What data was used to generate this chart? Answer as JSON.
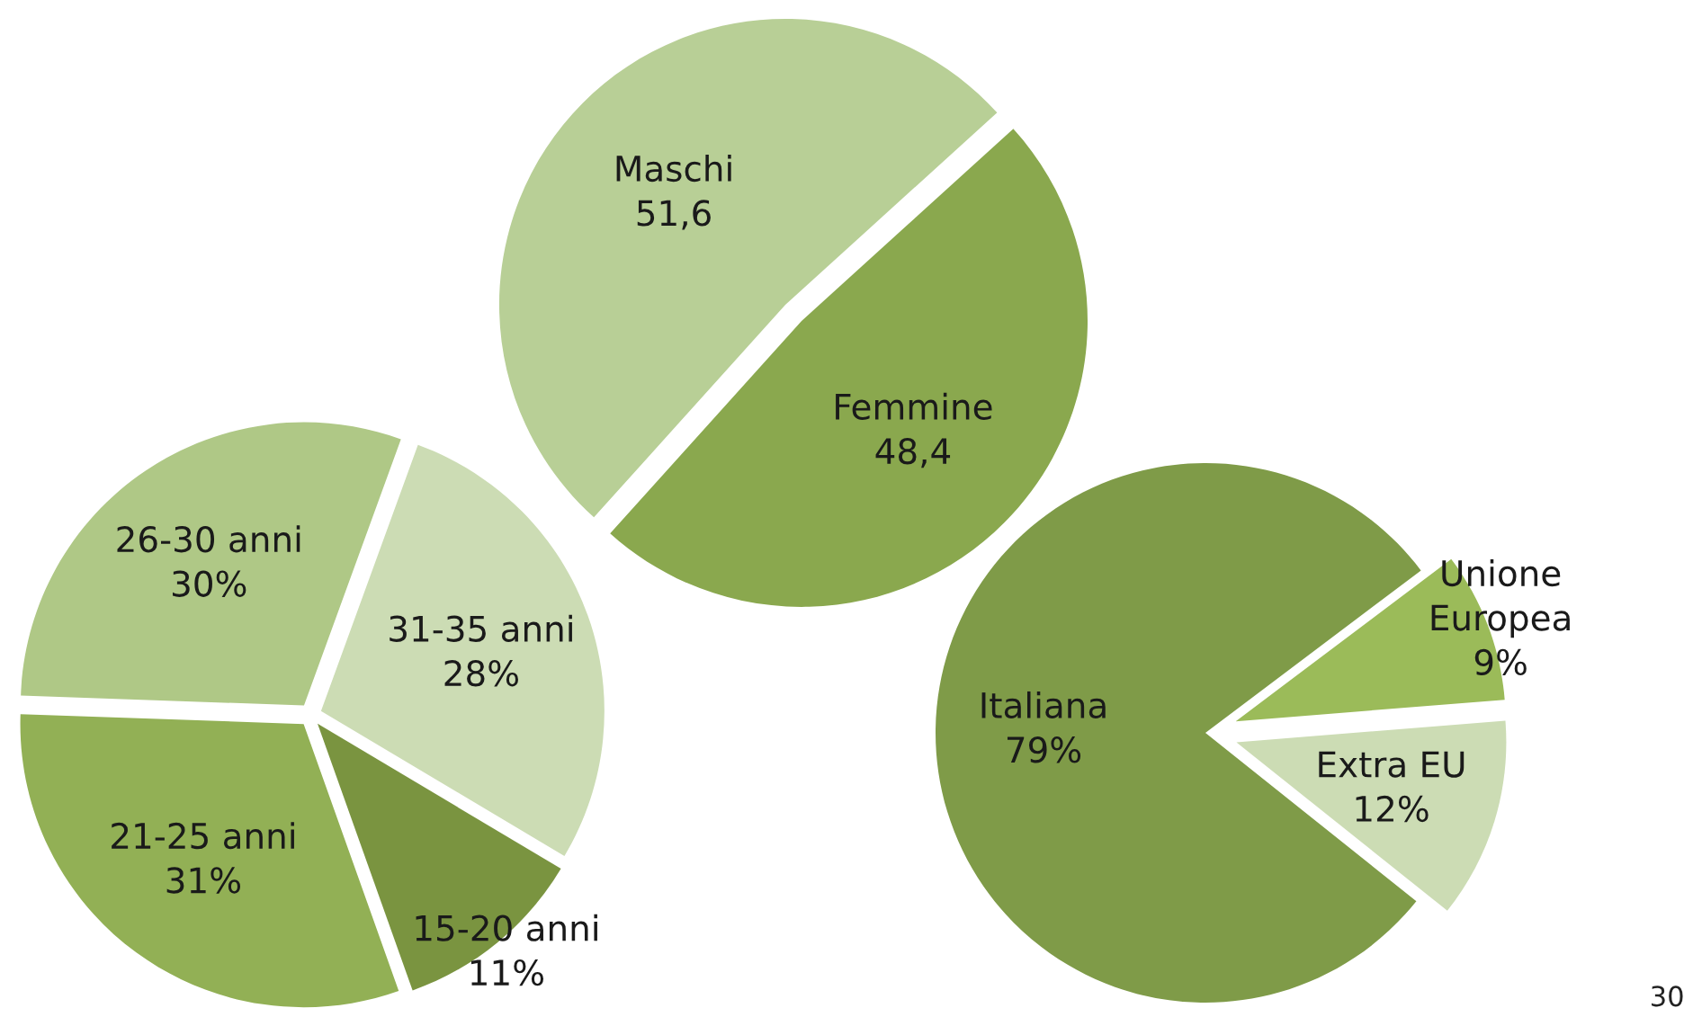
{
  "chart_data": [
    {
      "type": "pie",
      "categories": [
        "Maschi",
        "Femmine"
      ],
      "values": [
        51.6,
        48.4
      ],
      "value_labels": [
        "51,6",
        "48,4"
      ],
      "colors": [
        "#b8cf96",
        "#8aa84e"
      ]
    },
    {
      "type": "pie",
      "categories": [
        "26-30 anni",
        "31-35 anni",
        "15-20 anni",
        "21-25 anni"
      ],
      "values": [
        30,
        28,
        11,
        31
      ],
      "value_labels": [
        "30%",
        "28%",
        "11%",
        "31%"
      ],
      "colors": [
        "#afc886",
        "#ccdcb4",
        "#7a9440",
        "#92b055"
      ]
    },
    {
      "type": "pie",
      "categories": [
        "Italiana",
        "Unione\nEuropea",
        "Extra EU"
      ],
      "values": [
        79,
        9,
        12
      ],
      "value_labels": [
        "79%",
        "9%",
        "12%"
      ],
      "colors": [
        "#7f9b48",
        "#9bbb59",
        "#ccdcb4"
      ],
      "annotations": [
        "30"
      ]
    }
  ]
}
